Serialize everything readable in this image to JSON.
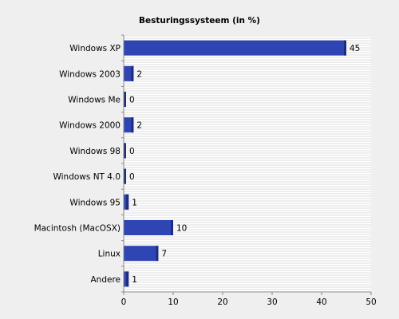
{
  "chart_data": {
    "type": "bar",
    "orientation": "horizontal",
    "title": "Besturingssysteem (in %)",
    "xlabel": "",
    "ylabel": "",
    "categories": [
      "Windows XP",
      "Windows 2003",
      "Windows Me",
      "Windows 2000",
      "Windows 98",
      "Windows NT 4.0",
      "Windows 95",
      "Macintosh (MacOSX)",
      "Linux",
      "Andere"
    ],
    "values": [
      45,
      2,
      0,
      2,
      0,
      0,
      1,
      10,
      7,
      1
    ],
    "value_labels": [
      "45",
      "2",
      "0",
      "2",
      "0",
      "0",
      "1",
      "10",
      "7",
      "1"
    ],
    "xlim": [
      0,
      50
    ],
    "xticks": [
      0,
      10,
      20,
      30,
      40,
      50
    ],
    "grid": "horizontal stripes",
    "legend": "none",
    "colors": {
      "bar": "#2f45b4",
      "bar_edge": "#1d2c7e",
      "background": "#efefef",
      "plot": "#ffffff",
      "stripe": "#dedede"
    }
  }
}
